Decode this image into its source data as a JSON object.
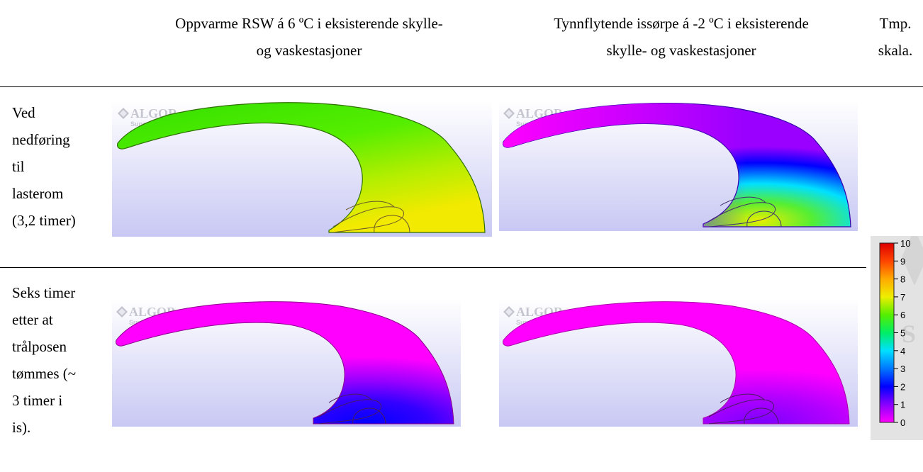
{
  "columns": {
    "col1": [
      "Oppvarme RSW á 6 ºC i eksisterende skylle-",
      "og vaskestasjoner"
    ],
    "col2": [
      "Tynnflytende issørpe á -2 ºC i eksisterende",
      "skylle- og vaskestasjoner"
    ],
    "col3": [
      "Tmp.",
      "skala."
    ]
  },
  "rows": [
    {
      "label_lines": [
        "Ved",
        "nedføring",
        "til",
        "lasterom",
        "(3,2 timer)"
      ]
    },
    {
      "label_lines": [
        "Seks timer",
        "etter at",
        "trålposen",
        "tømmes (~",
        "3 timer i",
        "is)."
      ]
    }
  ],
  "watermark": {
    "brand": "ALGOR",
    "sub": "Supervis"
  },
  "scale": {
    "min": 0,
    "max": 10,
    "ticks": [
      "10",
      "9",
      "8",
      "7",
      "6",
      "5",
      "4",
      "3",
      "2",
      "1",
      "0"
    ]
  },
  "plot_colors": {
    "green": "#44ee00",
    "yellow": "#eeee00",
    "magenta": "#ff00ff",
    "violet": "#9900ff",
    "blue": "#0000ff",
    "cyan": "#00e0ff"
  }
}
